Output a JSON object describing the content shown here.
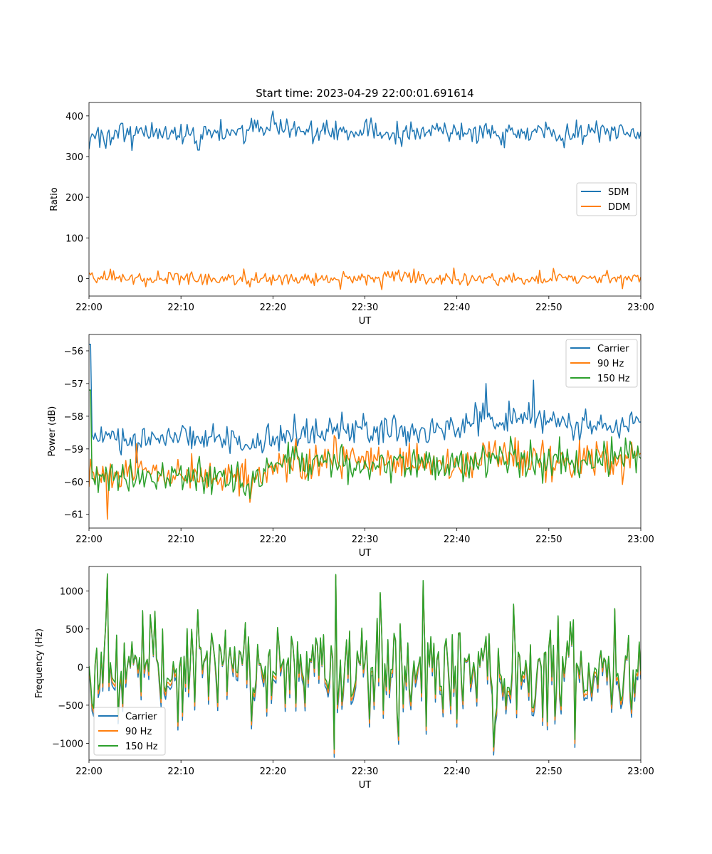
{
  "figure_title": "Start time: 2023-04-29 22:00:01.691614",
  "colors": {
    "blue": "#1f77b4",
    "orange": "#ff7f0e",
    "green": "#2ca02c"
  },
  "chart_data": [
    {
      "type": "line",
      "title": "Start time: 2023-04-29 22:00:01.691614",
      "xlabel": "UT",
      "ylabel": "Ratio",
      "x_ticks": [
        "22:00",
        "22:10",
        "22:20",
        "22:30",
        "22:40",
        "22:50",
        "23:00"
      ],
      "xlim_minutes": [
        0,
        60
      ],
      "ylim": [
        -43,
        433
      ],
      "y_ticks": [
        0,
        100,
        200,
        300,
        400
      ],
      "y_tick_labels": [
        "0",
        "100",
        "200",
        "300",
        "400"
      ],
      "legend_position": "center-right",
      "series": [
        {
          "name": "SDM",
          "color": "#1f77b4",
          "mean": 360,
          "amplitude": 14,
          "spikes": [
            [
              20,
              412
            ],
            [
              0,
              318
            ],
            [
              4.7,
              315
            ],
            [
              11.9,
              316
            ]
          ],
          "values_sample": [
            [
              0,
              320
            ],
            [
              5,
              345
            ],
            [
              10,
              355
            ],
            [
              15,
              355
            ],
            [
              20,
              412
            ],
            [
              25,
              360
            ],
            [
              30,
              358
            ],
            [
              35,
              357
            ],
            [
              40,
              360
            ],
            [
              45,
              358
            ],
            [
              50,
              360
            ],
            [
              55,
              362
            ],
            [
              60,
              368
            ]
          ]
        },
        {
          "name": "DDM",
          "color": "#ff7f0e",
          "mean": 0,
          "amplitude": 8,
          "spikes": [
            [
              39.7,
              26
            ],
            [
              6.2,
              -20
            ]
          ],
          "values_sample": [
            [
              0,
              5
            ],
            [
              5,
              -3
            ],
            [
              10,
              0
            ],
            [
              15,
              2
            ],
            [
              20,
              -2
            ],
            [
              25,
              -5
            ],
            [
              30,
              3
            ],
            [
              35,
              -2
            ],
            [
              40,
              5
            ],
            [
              45,
              0
            ],
            [
              50,
              -3
            ],
            [
              55,
              4
            ],
            [
              60,
              -8
            ]
          ]
        }
      ]
    },
    {
      "type": "line",
      "xlabel": "UT",
      "ylabel": "Power (dB)",
      "x_ticks": [
        "22:00",
        "22:10",
        "22:20",
        "22:30",
        "22:40",
        "22:50",
        "23:00"
      ],
      "xlim_minutes": [
        0,
        60
      ],
      "ylim": [
        -61.42,
        -55.5
      ],
      "y_ticks": [
        -61,
        -60,
        -59,
        -58,
        -57,
        -56
      ],
      "y_tick_labels": [
        "−61",
        "−60",
        "−59",
        "−58",
        "−57",
        "−56"
      ],
      "legend_position": "top-right",
      "series": [
        {
          "name": "Carrier",
          "color": "#1f77b4",
          "trend": [
            [
              0,
              -58.7
            ],
            [
              5,
              -58.8
            ],
            [
              10,
              -58.6
            ],
            [
              15,
              -58.7
            ],
            [
              18,
              -58.95
            ],
            [
              20,
              -58.6
            ],
            [
              30,
              -58.4
            ],
            [
              40,
              -58.4
            ],
            [
              42.5,
              -58.2
            ],
            [
              45,
              -58.0
            ],
            [
              50,
              -58.05
            ],
            [
              55,
              -58.3
            ],
            [
              60,
              -58.1
            ]
          ],
          "spikes": [
            [
              0.15,
              -55.8
            ],
            [
              48.4,
              -56.9
            ],
            [
              43.2,
              -57.0
            ]
          ]
        },
        {
          "name": "90 Hz",
          "color": "#ff7f0e",
          "trend": [
            [
              0,
              -59.85
            ],
            [
              10,
              -59.75
            ],
            [
              18,
              -59.9
            ],
            [
              20,
              -59.45
            ],
            [
              30,
              -59.35
            ],
            [
              40,
              -59.5
            ],
            [
              45,
              -59.2
            ],
            [
              50,
              -59.4
            ],
            [
              60,
              -59.2
            ]
          ],
          "spikes": [
            [
              2,
              -61.15
            ]
          ]
        },
        {
          "name": "150 Hz",
          "color": "#2ca02c",
          "trend": [
            [
              0,
              -59.85
            ],
            [
              10,
              -59.8
            ],
            [
              18,
              -59.95
            ],
            [
              20,
              -59.5
            ],
            [
              30,
              -59.35
            ],
            [
              40,
              -59.6
            ],
            [
              45,
              -59.15
            ],
            [
              50,
              -59.35
            ],
            [
              60,
              -59.3
            ]
          ],
          "spikes": [
            [
              0.15,
              -57.2
            ]
          ]
        }
      ]
    },
    {
      "type": "line",
      "xlabel": "UT",
      "ylabel": "Frequency (Hz)",
      "x_ticks": [
        "22:00",
        "22:10",
        "22:20",
        "22:30",
        "22:40",
        "22:50",
        "23:00"
      ],
      "xlim_minutes": [
        0,
        60
      ],
      "ylim": [
        -1220,
        1320
      ],
      "y_ticks": [
        -1000,
        -500,
        0,
        500,
        1000
      ],
      "y_tick_labels": [
        "−1000",
        "−500",
        "0",
        "500",
        "1000"
      ],
      "legend_position": "bottom-left",
      "series": [
        {
          "name": "Carrier",
          "color": "#1f77b4",
          "offset": -80,
          "range": [
            -1130,
            1210
          ]
        },
        {
          "name": "90 Hz",
          "color": "#ff7f0e",
          "offset": -40,
          "range": [
            -1100,
            1215
          ]
        },
        {
          "name": "150 Hz",
          "color": "#2ca02c",
          "offset": 0,
          "range": [
            -1080,
            1225
          ],
          "spikes": [
            [
              2.0,
              1225
            ],
            [
              26.8,
              1215
            ],
            [
              26.7,
              -1080
            ],
            [
              36.3,
              1135
            ],
            [
              44.0,
              -1050
            ]
          ]
        }
      ]
    }
  ]
}
